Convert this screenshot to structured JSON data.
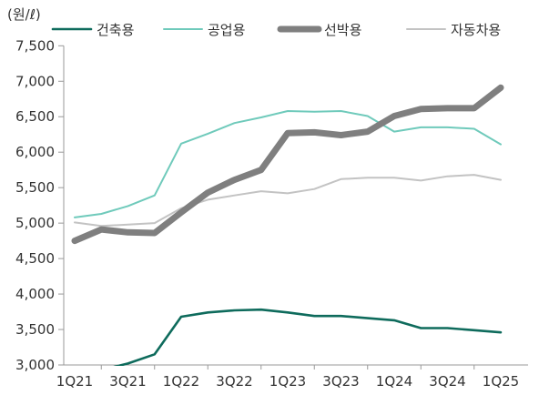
{
  "chart_data": {
    "type": "line",
    "unit_label": "(원/ℓ)",
    "categories": [
      "1Q21",
      "2Q21",
      "3Q21",
      "4Q21",
      "1Q22",
      "2Q22",
      "3Q22",
      "4Q22",
      "1Q23",
      "2Q23",
      "3Q23",
      "4Q23",
      "1Q24",
      "2Q24",
      "3Q24",
      "4Q24",
      "1Q25"
    ],
    "x_tick_labels": [
      "1Q21",
      "",
      "3Q21",
      "",
      "1Q22",
      "",
      "3Q22",
      "",
      "1Q23",
      "",
      "3Q23",
      "",
      "1Q24",
      "",
      "3Q24",
      "",
      "1Q25"
    ],
    "ylim": [
      3000,
      7500
    ],
    "y_ticks": [
      3000,
      3500,
      4000,
      4500,
      5000,
      5500,
      6000,
      6500,
      7000,
      7500
    ],
    "y_tick_labels": [
      "3,000",
      "3,500",
      "4,000",
      "4,500",
      "5,000",
      "5,500",
      "6,000",
      "6,500",
      "7,000",
      "7,500"
    ],
    "grid": false,
    "legend_position": "top",
    "series": [
      {
        "name": "건축용",
        "color": "#0e6b5c",
        "weight": "medium",
        "values": [
          2900,
          2930,
          3020,
          3150,
          3680,
          3740,
          3770,
          3780,
          3740,
          3690,
          3690,
          3660,
          3630,
          3520,
          3520,
          3490,
          3460
        ]
      },
      {
        "name": "공업용",
        "color": "#6fcabb",
        "weight": "thin",
        "values": [
          5080,
          5130,
          5240,
          5390,
          6120,
          6260,
          6410,
          6490,
          6580,
          6570,
          6580,
          6510,
          6290,
          6350,
          6350,
          6330,
          6110
        ]
      },
      {
        "name": "선박용",
        "color": "#7f7f7f",
        "weight": "bold",
        "values": [
          4750,
          4910,
          4870,
          4860,
          5150,
          5430,
          5610,
          5750,
          6270,
          6280,
          6240,
          6290,
          6510,
          6610,
          6620,
          6620,
          6910
        ]
      },
      {
        "name": "자동차용",
        "color": "#c3c3c3",
        "weight": "thin",
        "values": [
          5010,
          4960,
          4980,
          5000,
          5210,
          5330,
          5390,
          5450,
          5420,
          5480,
          5620,
          5640,
          5640,
          5600,
          5660,
          5680,
          5610
        ]
      }
    ]
  }
}
